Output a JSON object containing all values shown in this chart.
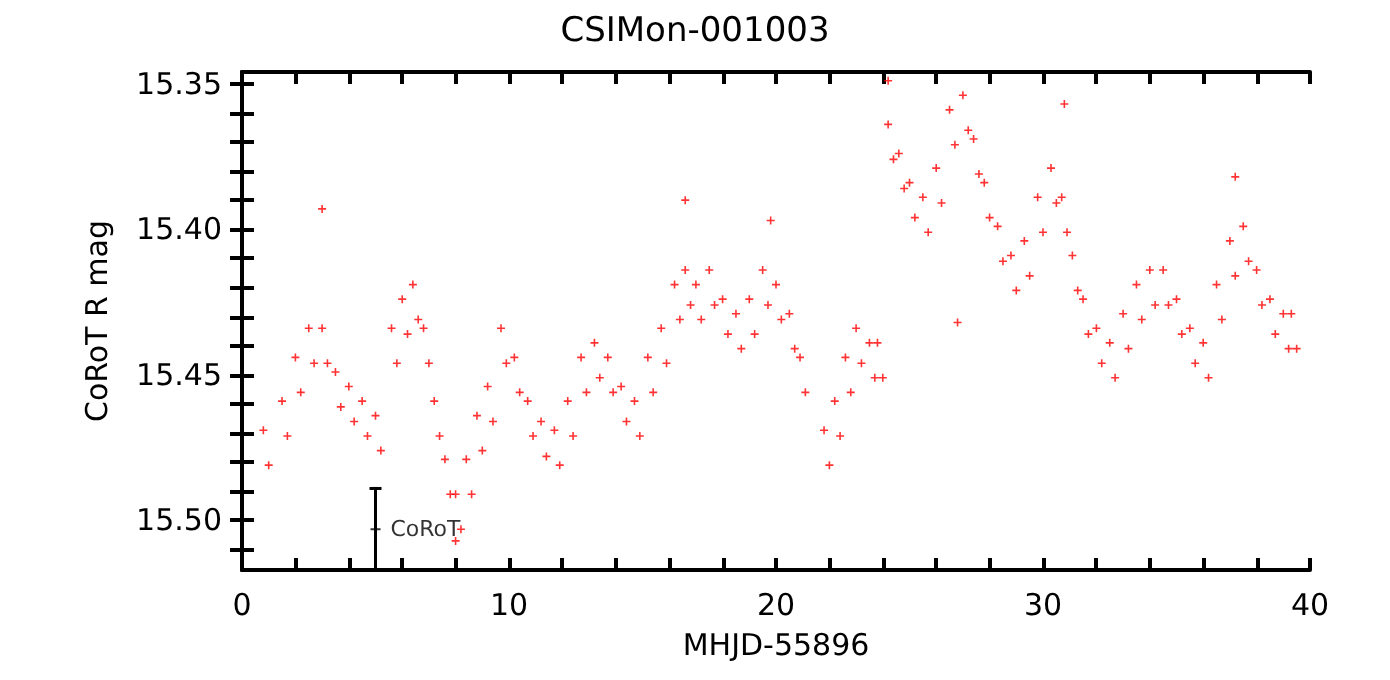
{
  "chart_data": {
    "type": "scatter",
    "title": "CSIMon-001003",
    "xlabel": "MHJD-55896",
    "ylabel": "CoRoT R mag",
    "xlim": [
      0,
      40
    ],
    "xticks": [
      0,
      {
        "value": 2,
        "label": null
      },
      {
        "value": 4,
        "label": null
      },
      {
        "value": 6,
        "label": null
      },
      {
        "value": 8,
        "label": null
      },
      10,
      {
        "value": 12,
        "label": null
      },
      {
        "value": 14,
        "label": null
      },
      {
        "value": 16,
        "label": null
      },
      {
        "value": 18,
        "label": null
      },
      20,
      {
        "value": 22,
        "label": null
      },
      {
        "value": 24,
        "label": null
      },
      {
        "value": 26,
        "label": null
      },
      {
        "value": 28,
        "label": null
      },
      30,
      {
        "value": 32,
        "label": null
      },
      {
        "value": 34,
        "label": null
      },
      {
        "value": 36,
        "label": null
      },
      {
        "value": 38,
        "label": null
      },
      40
    ],
    "ylim": [
      15.517,
      15.346
    ],
    "yticks": [
      15.35,
      {
        "value": 15.36,
        "label": null
      },
      {
        "value": 15.37,
        "label": null
      },
      {
        "value": 15.38,
        "label": null
      },
      {
        "value": 15.39,
        "label": null
      },
      {
        "value": 15.4,
        "label": "15.40"
      },
      {
        "value": 15.41,
        "label": null
      },
      {
        "value": 15.42,
        "label": null
      },
      {
        "value": 15.43,
        "label": null
      },
      {
        "value": 15.44,
        "label": null
      },
      15.45,
      {
        "value": 15.46,
        "label": null
      },
      {
        "value": 15.47,
        "label": null
      },
      {
        "value": 15.48,
        "label": null
      },
      {
        "value": 15.49,
        "label": null
      },
      {
        "value": 15.5,
        "label": "15.50"
      },
      {
        "value": 15.51,
        "label": null
      }
    ],
    "grid": false,
    "marker": "cross",
    "series": [
      {
        "color": "#ff0000",
        "x": [
          0.8,
          1.0,
          1.5,
          1.7,
          2.0,
          2.2,
          2.5,
          2.7,
          3.0,
          3.2,
          3.0,
          3.5,
          3.7,
          4.0,
          4.2,
          4.5,
          4.7,
          5.0,
          5.2,
          5.6,
          5.8,
          6.0,
          6.2,
          6.4,
          6.6,
          6.8,
          7.0,
          7.2,
          7.4,
          7.6,
          7.8,
          8.0,
          8.2,
          8.0,
          8.4,
          8.6,
          8.8,
          9.0,
          9.2,
          9.4,
          9.7,
          9.9,
          10.2,
          10.4,
          10.7,
          10.9,
          11.2,
          11.4,
          11.7,
          11.9,
          12.2,
          12.4,
          12.7,
          12.9,
          13.2,
          13.4,
          13.7,
          13.9,
          14.2,
          14.4,
          14.7,
          14.9,
          15.2,
          15.4,
          15.7,
          15.9,
          16.2,
          16.4,
          16.6,
          16.8,
          16.6,
          17.0,
          17.2,
          17.5,
          17.7,
          18.0,
          18.2,
          18.5,
          18.7,
          19.0,
          19.2,
          19.5,
          19.7,
          19.8,
          20.0,
          20.2,
          20.5,
          20.7,
          20.9,
          21.1,
          21.8,
          22.0,
          22.2,
          22.4,
          22.6,
          22.8,
          23.0,
          23.2,
          23.5,
          23.7,
          23.8,
          24.0,
          24.2,
          24.4,
          24.2,
          24.6,
          24.8,
          25.0,
          25.2,
          25.5,
          25.7,
          26.0,
          26.2,
          26.5,
          26.7,
          26.8,
          27.0,
          27.2,
          27.4,
          27.6,
          27.8,
          28.0,
          28.3,
          28.5,
          28.8,
          29.0,
          29.3,
          29.5,
          29.8,
          30.0,
          30.3,
          30.5,
          30.7,
          30.9,
          30.8,
          31.1,
          31.3,
          31.5,
          31.7,
          32.0,
          32.2,
          32.5,
          32.7,
          33.0,
          33.2,
          33.5,
          33.7,
          34.0,
          34.2,
          34.5,
          34.7,
          35.0,
          35.2,
          35.5,
          35.7,
          36.0,
          36.2,
          36.5,
          36.7,
          37.0,
          37.2,
          37.2,
          37.5,
          37.7,
          38.0,
          38.2,
          38.5,
          38.7,
          39.0,
          39.2,
          39.3,
          39.5
        ],
        "values": [
          15.469,
          15.481,
          15.459,
          15.471,
          15.444,
          15.456,
          15.434,
          15.446,
          15.434,
          15.446,
          15.393,
          15.449,
          15.461,
          15.454,
          15.466,
          15.459,
          15.471,
          15.464,
          15.476,
          15.434,
          15.446,
          15.424,
          15.436,
          15.419,
          15.431,
          15.434,
          15.446,
          15.459,
          15.471,
          15.479,
          15.491,
          15.491,
          15.503,
          15.507,
          15.479,
          15.491,
          15.464,
          15.476,
          15.454,
          15.466,
          15.434,
          15.446,
          15.444,
          15.456,
          15.459,
          15.471,
          15.466,
          15.478,
          15.469,
          15.481,
          15.459,
          15.471,
          15.444,
          15.456,
          15.439,
          15.451,
          15.444,
          15.456,
          15.454,
          15.466,
          15.459,
          15.471,
          15.444,
          15.456,
          15.434,
          15.446,
          15.419,
          15.431,
          15.414,
          15.426,
          15.39,
          15.419,
          15.431,
          15.414,
          15.426,
          15.424,
          15.436,
          15.429,
          15.441,
          15.424,
          15.436,
          15.414,
          15.426,
          15.397,
          15.419,
          15.431,
          15.429,
          15.441,
          15.444,
          15.456,
          15.469,
          15.481,
          15.459,
          15.471,
          15.444,
          15.456,
          15.434,
          15.446,
          15.439,
          15.451,
          15.439,
          15.451,
          15.364,
          15.376,
          15.349,
          15.374,
          15.386,
          15.384,
          15.396,
          15.389,
          15.401,
          15.379,
          15.391,
          15.359,
          15.371,
          15.432,
          15.354,
          15.366,
          15.369,
          15.381,
          15.384,
          15.396,
          15.399,
          15.411,
          15.409,
          15.421,
          15.404,
          15.416,
          15.389,
          15.401,
          15.379,
          15.391,
          15.389,
          15.401,
          15.357,
          15.409,
          15.421,
          15.424,
          15.436,
          15.434,
          15.446,
          15.439,
          15.451,
          15.429,
          15.441,
          15.419,
          15.431,
          15.414,
          15.426,
          15.414,
          15.426,
          15.424,
          15.436,
          15.434,
          15.446,
          15.439,
          15.451,
          15.419,
          15.431,
          15.404,
          15.416,
          15.382,
          15.399,
          15.411,
          15.414,
          15.426,
          15.424,
          15.436,
          15.429,
          15.441,
          15.429,
          15.441
        ]
      },
      {
        "name": "CoRoT",
        "type": "scatter",
        "color": "#000000",
        "x": [
          5
        ],
        "values": [
          15.503
        ],
        "errors": [
          [
            15.489,
            15.517
          ]
        ]
      }
    ]
  }
}
